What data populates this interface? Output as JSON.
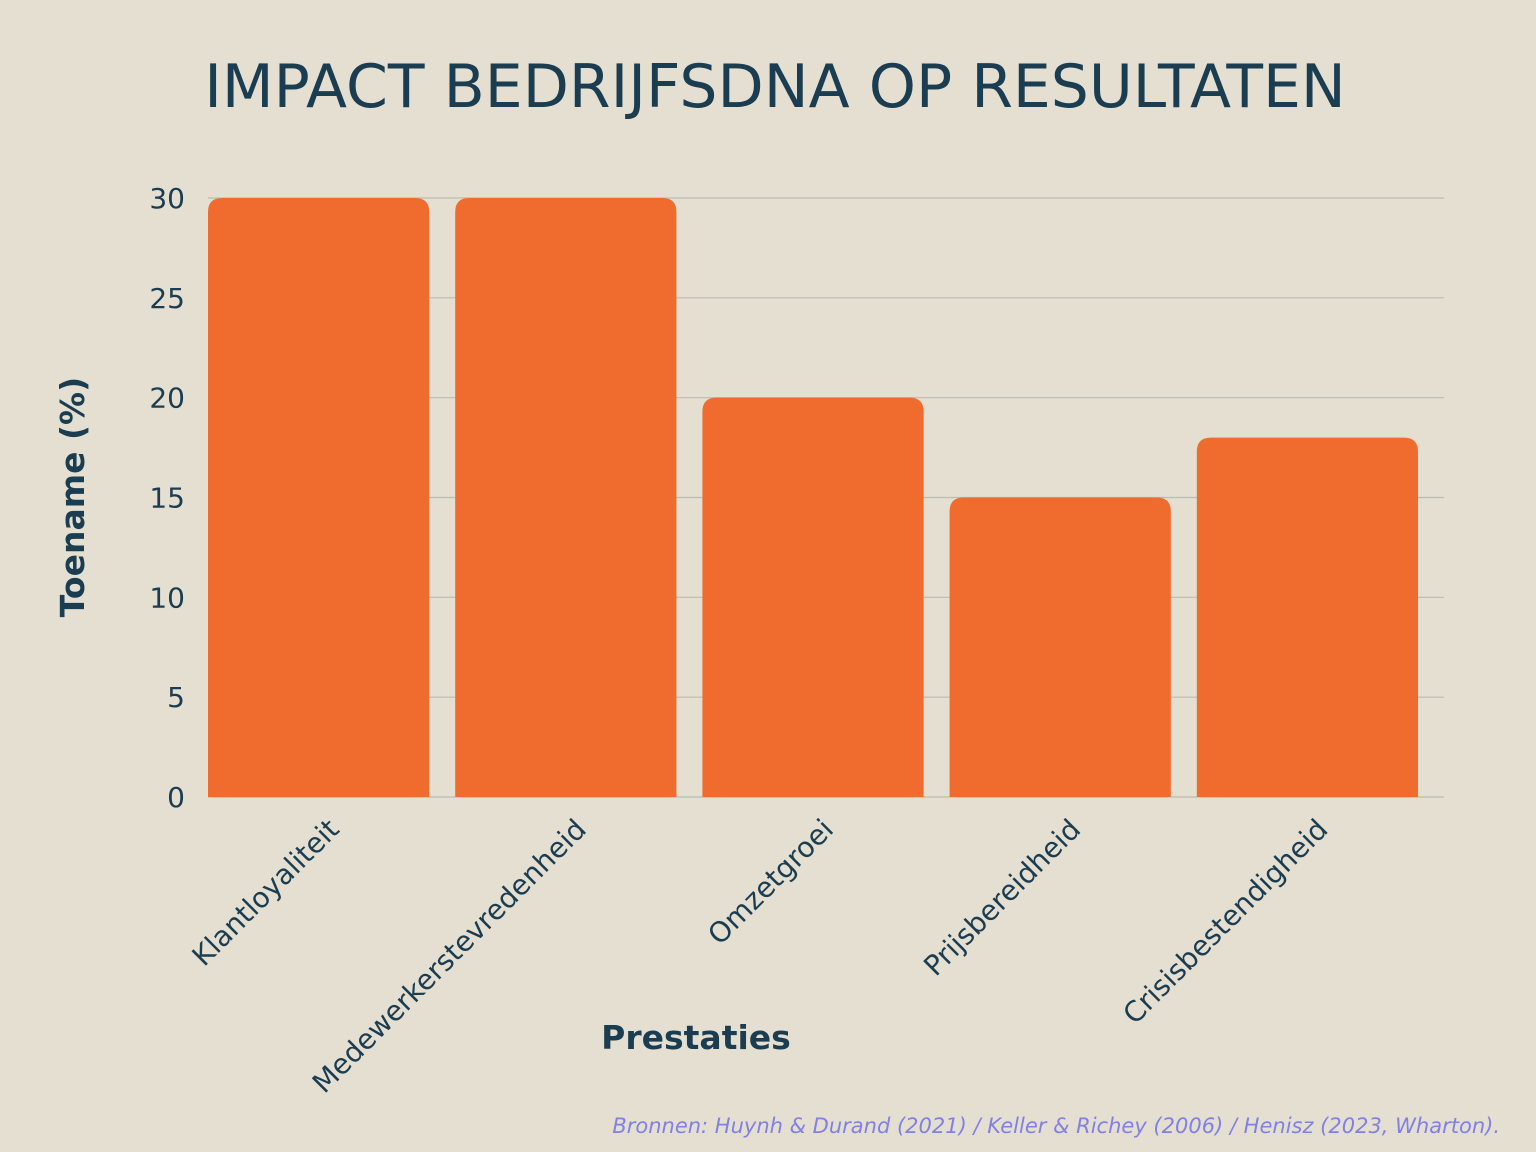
{
  "chart_data": {
    "type": "bar",
    "title": "IMPACT BEDRIJFSDNA OP RESULTATEN",
    "xlabel": "Prestaties",
    "ylabel": "Toename (%)",
    "categories": [
      "Klantloyaliteit",
      "Medewerkerstevredenheid",
      "Omzetgroei",
      "Prijsbereidheid",
      "Crisisbestendigheid"
    ],
    "values": [
      30,
      30,
      20,
      15,
      18
    ],
    "ylim": [
      0,
      30
    ],
    "yticks": [
      0,
      5,
      10,
      15,
      20,
      25,
      30
    ],
    "grid": true,
    "bar_color": "#ef6c2e"
  },
  "source_note": "Bronnen: Huynh & Durand (2021) / Keller & Richey (2006) / Henisz (2023, Wharton).",
  "colors": {
    "background": "#e5dfd2",
    "text": "#1b3d51",
    "grid": "#b9bdb0",
    "source": "#8080e6"
  }
}
